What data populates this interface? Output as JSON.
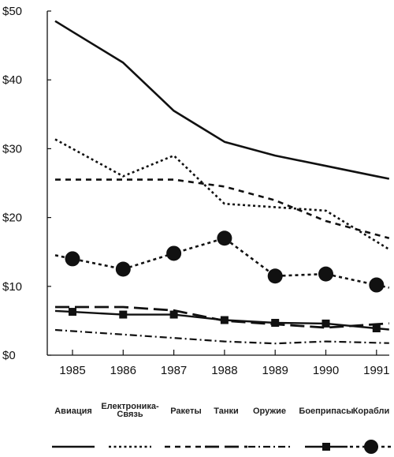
{
  "chart_data": {
    "type": "line",
    "x": [
      "1985",
      "1986",
      "1987",
      "1988",
      "1989",
      "1990",
      "1991"
    ],
    "ylim": [
      0,
      50
    ],
    "yticks": [
      {
        "value": 0,
        "label": "$0"
      },
      {
        "value": 10,
        "label": "$10"
      },
      {
        "value": 20,
        "label": "$20"
      },
      {
        "value": 30,
        "label": "$30"
      },
      {
        "value": 40,
        "label": "$40"
      },
      {
        "value": 50,
        "label": "$50"
      }
    ],
    "legend_position": "bottom",
    "grid": false,
    "series": [
      {
        "name": "Авиация",
        "style": "solid",
        "values": [
          47,
          42.5,
          35.5,
          31,
          29,
          27.5,
          26
        ]
      },
      {
        "name": "Електроника-Связь",
        "style": "dotted",
        "values": [
          30,
          26,
          29,
          22,
          21.5,
          21,
          16.5
        ]
      },
      {
        "name": "Ракеты",
        "style": "short-dash",
        "values": [
          25.5,
          25.5,
          25.5,
          24.5,
          22.5,
          19.5,
          17.5
        ]
      },
      {
        "name": "Танки",
        "style": "long-dash",
        "values": [
          7,
          7,
          6.5,
          5,
          4.5,
          4,
          4.5
        ]
      },
      {
        "name": "Оружие",
        "style": "dash-dot",
        "values": [
          3.5,
          3,
          2.5,
          2,
          1.7,
          2,
          1.8
        ]
      },
      {
        "name": "Боеприпасы",
        "style": "square-marker",
        "values": [
          6.3,
          5.9,
          5.9,
          5.1,
          4.7,
          4.6,
          3.9
        ]
      },
      {
        "name": "Корабли",
        "style": "circle-marker",
        "values": [
          14,
          12.5,
          14.8,
          17,
          11.5,
          11.8,
          10.2
        ]
      }
    ]
  }
}
